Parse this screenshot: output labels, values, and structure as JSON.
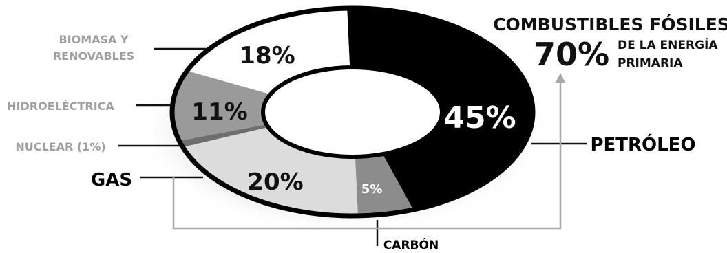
{
  "chart_data": {
    "type": "pie",
    "style": "donut",
    "slices": [
      {
        "label": "PETRÓLEO",
        "value": 45,
        "display": "45%",
        "color": "#000000",
        "text_color": "#ffffff"
      },
      {
        "label": "CARBÓN",
        "value": 5,
        "display": "5%",
        "color": "#8c8c8c",
        "text_color": "#ffffff"
      },
      {
        "label": "GAS",
        "value": 20,
        "display": "20%",
        "color": "#dcdcdc",
        "text_color": "#111111"
      },
      {
        "label": "NUCLEAR (1%)",
        "value": 1,
        "display": "",
        "color": "#6e6e6e",
        "text_color": "#111111"
      },
      {
        "label": "HIDROELÉCTRICA",
        "value": 11,
        "display": "11%",
        "color": "#9a9a9a",
        "text_color": "#111111"
      },
      {
        "label": "BIOMASA Y RENOVABLES",
        "value": 18,
        "display": "18%",
        "color": "#ffffff",
        "text_color": "#111111"
      }
    ],
    "annotation": {
      "title": "COMBUSTIBLES FÓSILES",
      "value": "70%",
      "subtitle_line1": "DE LA ENERGÍA",
      "subtitle_line2": "PRIMARIA"
    }
  },
  "labels": {
    "biomasa_line1": "BIOMASA Y",
    "biomasa_line2": "RENOVABLES",
    "hidro": "HIDROELÉCTRICA",
    "nuclear": "NUCLEAR (1%)",
    "gas": "GAS",
    "petroleo": "PETRÓLEO",
    "carbon": "CARBÓN"
  },
  "colors": {
    "muted_label": "#a0a0a0",
    "dark_label": "#000000",
    "leader": "#111111",
    "bracket": "#a8a8a8"
  }
}
